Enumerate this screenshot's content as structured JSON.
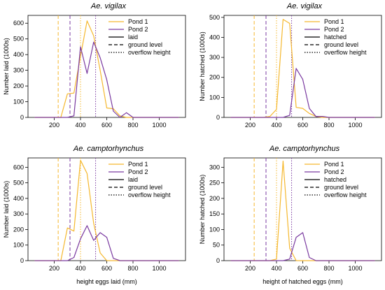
{
  "colors": {
    "pond1": "#f5b82e",
    "pond2": "#7a3aa0",
    "axis": "#000000"
  },
  "chart_data": [
    {
      "type": "line",
      "title": "Ae. vigilax",
      "xlabel": "",
      "ylabel": "Number laid (1000s)",
      "xlim": [
        0,
        1200
      ],
      "ylim": [
        0,
        650
      ],
      "xticks": [
        200,
        400,
        600,
        800,
        1000
      ],
      "yticks": [
        0,
        100,
        200,
        300,
        400,
        500,
        600
      ],
      "series": [
        {
          "name": "Pond 1",
          "x": [
            50,
            100,
            150,
            200,
            250,
            300,
            350,
            400,
            450,
            500,
            550,
            600,
            650,
            700,
            750,
            800,
            850,
            900,
            950,
            1000,
            1050,
            1100,
            1150
          ],
          "y": [
            0,
            0,
            0,
            0,
            0,
            150,
            155,
            390,
            615,
            520,
            300,
            60,
            55,
            10,
            0,
            0,
            0,
            0,
            0,
            0,
            0,
            0,
            0
          ]
        },
        {
          "name": "Pond 2",
          "x": [
            50,
            100,
            150,
            200,
            250,
            300,
            350,
            400,
            450,
            500,
            550,
            600,
            650,
            700,
            750,
            800,
            850,
            900,
            950,
            1000,
            1050,
            1100,
            1150
          ],
          "y": [
            0,
            0,
            0,
            0,
            0,
            0,
            10,
            450,
            280,
            480,
            380,
            240,
            40,
            0,
            30,
            0,
            0,
            0,
            0,
            0,
            0,
            0,
            0
          ]
        }
      ],
      "vlines": [
        {
          "x": 230,
          "series": "Pond 1",
          "style": "dashed"
        },
        {
          "x": 320,
          "series": "Pond 2",
          "style": "dashed"
        },
        {
          "x": 400,
          "series": "Pond 1",
          "style": "dotted"
        },
        {
          "x": 515,
          "series": "Pond 2",
          "style": "dotted"
        }
      ],
      "legend": [
        "Pond 1",
        "Pond 2",
        "laid",
        "ground level",
        "overflow height"
      ],
      "legend_position": "top-right"
    },
    {
      "type": "line",
      "title": "Ae. vigilax",
      "xlabel": "",
      "ylabel": "Number hatched (1000s)",
      "xlim": [
        0,
        1200
      ],
      "ylim": [
        0,
        510
      ],
      "xticks": [
        200,
        400,
        600,
        800,
        1000
      ],
      "yticks": [
        0,
        100,
        200,
        300,
        400,
        500
      ],
      "series": [
        {
          "name": "Pond 1",
          "x": [
            50,
            100,
            150,
            200,
            250,
            300,
            350,
            400,
            450,
            500,
            550,
            600,
            650,
            700,
            750,
            800,
            850,
            900,
            950,
            1000,
            1050,
            1100,
            1150
          ],
          "y": [
            0,
            0,
            0,
            0,
            0,
            0,
            5,
            40,
            490,
            470,
            50,
            45,
            20,
            5,
            0,
            0,
            0,
            0,
            0,
            0,
            0,
            0,
            0
          ]
        },
        {
          "name": "Pond 2",
          "x": [
            50,
            100,
            150,
            200,
            250,
            300,
            350,
            400,
            450,
            500,
            550,
            600,
            650,
            700,
            750,
            800,
            850,
            900,
            950,
            1000,
            1050,
            1100,
            1150
          ],
          "y": [
            0,
            0,
            0,
            0,
            0,
            0,
            0,
            0,
            0,
            10,
            245,
            190,
            45,
            5,
            5,
            0,
            0,
            0,
            0,
            0,
            0,
            0,
            0
          ]
        }
      ],
      "vlines": [
        {
          "x": 230,
          "series": "Pond 1",
          "style": "dashed"
        },
        {
          "x": 320,
          "series": "Pond 2",
          "style": "dashed"
        },
        {
          "x": 400,
          "series": "Pond 1",
          "style": "dotted"
        },
        {
          "x": 515,
          "series": "Pond 2",
          "style": "dotted"
        }
      ],
      "legend": [
        "Pond 1",
        "Pond 2",
        "hatched",
        "ground level",
        "overflow height"
      ],
      "legend_position": "top-right"
    },
    {
      "type": "line",
      "title": "Ae. camptorhynchus",
      "xlabel": "height eggs laid (mm)",
      "ylabel": "Number laid (1000s)",
      "xlim": [
        0,
        1200
      ],
      "ylim": [
        0,
        660
      ],
      "xticks": [
        200,
        400,
        600,
        800,
        1000
      ],
      "yticks": [
        0,
        100,
        200,
        300,
        400,
        500,
        600
      ],
      "series": [
        {
          "name": "Pond 1",
          "x": [
            50,
            100,
            150,
            200,
            250,
            300,
            350,
            400,
            450,
            500,
            550,
            600,
            650,
            700,
            750,
            800,
            850,
            900,
            950,
            1000,
            1050,
            1100,
            1150
          ],
          "y": [
            0,
            0,
            0,
            0,
            0,
            210,
            190,
            645,
            560,
            240,
            50,
            0,
            0,
            0,
            0,
            0,
            0,
            0,
            0,
            0,
            0,
            0,
            0
          ]
        },
        {
          "name": "Pond 2",
          "x": [
            50,
            100,
            150,
            200,
            250,
            300,
            350,
            400,
            450,
            500,
            550,
            600,
            650,
            700,
            750,
            800,
            850,
            900,
            950,
            1000,
            1050,
            1100,
            1150
          ],
          "y": [
            0,
            0,
            0,
            0,
            0,
            0,
            20,
            140,
            225,
            130,
            180,
            150,
            15,
            0,
            0,
            0,
            0,
            0,
            0,
            0,
            0,
            0,
            0
          ]
        }
      ],
      "vlines": [
        {
          "x": 230,
          "series": "Pond 1",
          "style": "dashed"
        },
        {
          "x": 320,
          "series": "Pond 2",
          "style": "dashed"
        },
        {
          "x": 400,
          "series": "Pond 1",
          "style": "dotted"
        },
        {
          "x": 515,
          "series": "Pond 2",
          "style": "dotted"
        }
      ],
      "legend": [
        "Pond 1",
        "Pond 2",
        "laid",
        "ground level",
        "overflow height"
      ],
      "legend_position": "top-right"
    },
    {
      "type": "line",
      "title": "Ae. camptorhynchus",
      "xlabel": "height of hatched eggs (mm)",
      "ylabel": "Number hatched (1000s)",
      "xlim": [
        0,
        1200
      ],
      "ylim": [
        0,
        330
      ],
      "xticks": [
        200,
        400,
        600,
        800,
        1000
      ],
      "yticks": [
        0,
        50,
        100,
        150,
        200,
        250,
        300
      ],
      "series": [
        {
          "name": "Pond 1",
          "x": [
            50,
            100,
            150,
            200,
            250,
            300,
            350,
            400,
            450,
            500,
            550,
            600,
            650,
            700,
            750,
            800,
            850,
            900,
            950,
            1000,
            1050,
            1100,
            1150
          ],
          "y": [
            0,
            0,
            0,
            0,
            0,
            0,
            0,
            5,
            320,
            40,
            0,
            0,
            0,
            0,
            0,
            0,
            0,
            0,
            0,
            0,
            0,
            0,
            0
          ]
        },
        {
          "name": "Pond 2",
          "x": [
            50,
            100,
            150,
            200,
            250,
            300,
            350,
            400,
            450,
            500,
            550,
            600,
            650,
            700,
            750,
            800,
            850,
            900,
            950,
            1000,
            1050,
            1100,
            1150
          ],
          "y": [
            0,
            0,
            0,
            0,
            0,
            0,
            0,
            0,
            0,
            5,
            75,
            90,
            10,
            0,
            0,
            0,
            0,
            0,
            0,
            0,
            0,
            0,
            0
          ]
        }
      ],
      "vlines": [
        {
          "x": 230,
          "series": "Pond 1",
          "style": "dashed"
        },
        {
          "x": 320,
          "series": "Pond 2",
          "style": "dashed"
        },
        {
          "x": 400,
          "series": "Pond 1",
          "style": "dotted"
        },
        {
          "x": 515,
          "series": "Pond 2",
          "style": "dotted"
        }
      ],
      "legend": [
        "Pond 1",
        "Pond 2",
        "hatched",
        "ground level",
        "overflow height"
      ],
      "legend_position": "top-right"
    }
  ]
}
